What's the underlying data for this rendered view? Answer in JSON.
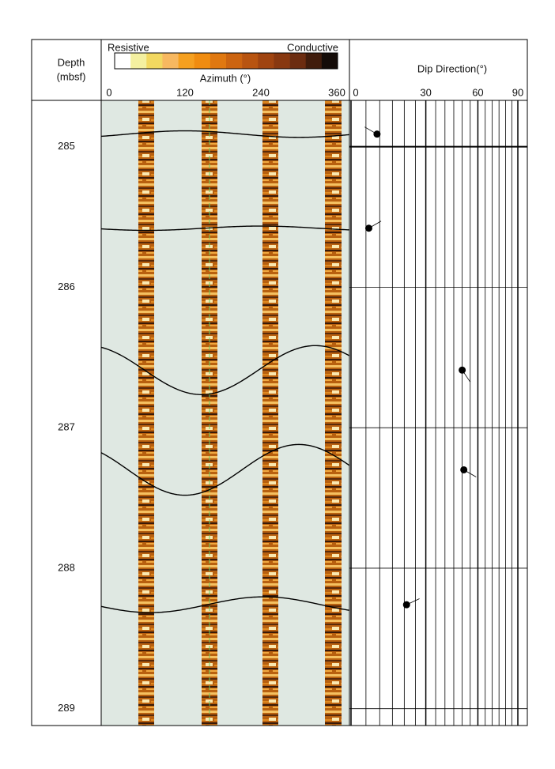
{
  "chart_data": {
    "type": "well-log",
    "depth_label": [
      "Depth",
      "(mbsf)"
    ],
    "ylim": [
      284.67,
      289.12
    ],
    "yticks": [
      285,
      286,
      287,
      288,
      289
    ],
    "image_track": {
      "legend_low": "Resistive",
      "legend_high": "Conductive",
      "colorbar": [
        "#ffffff",
        "#f4f0a0",
        "#f2d860",
        "#f7b860",
        "#f5a020",
        "#f08c10",
        "#e07810",
        "#cc6410",
        "#b85410",
        "#a04410",
        "#883810",
        "#6c2c10",
        "#401c0c",
        "#140c08"
      ],
      "xlabel": "Azimuth (°)",
      "xlim": [
        0,
        360
      ],
      "xticks": [
        0,
        120,
        240,
        360
      ]
    },
    "dip_track": {
      "title": "Dip Direction(°)",
      "xlim": [
        0,
        90
      ],
      "xticks": [
        0,
        30,
        60,
        90
      ],
      "xgrid": [
        0,
        5,
        10,
        15,
        20,
        25,
        30,
        35,
        40,
        45,
        50,
        55,
        60,
        65,
        70,
        75,
        80,
        85,
        90
      ]
    },
    "planes": {
      "depth": [
        284.91,
        285.58,
        286.59,
        287.3,
        288.26
      ],
      "dip": [
        9,
        6,
        50,
        51,
        21
      ],
      "dip_direction": [
        300,
        60,
        146,
        120,
        65
      ]
    }
  }
}
